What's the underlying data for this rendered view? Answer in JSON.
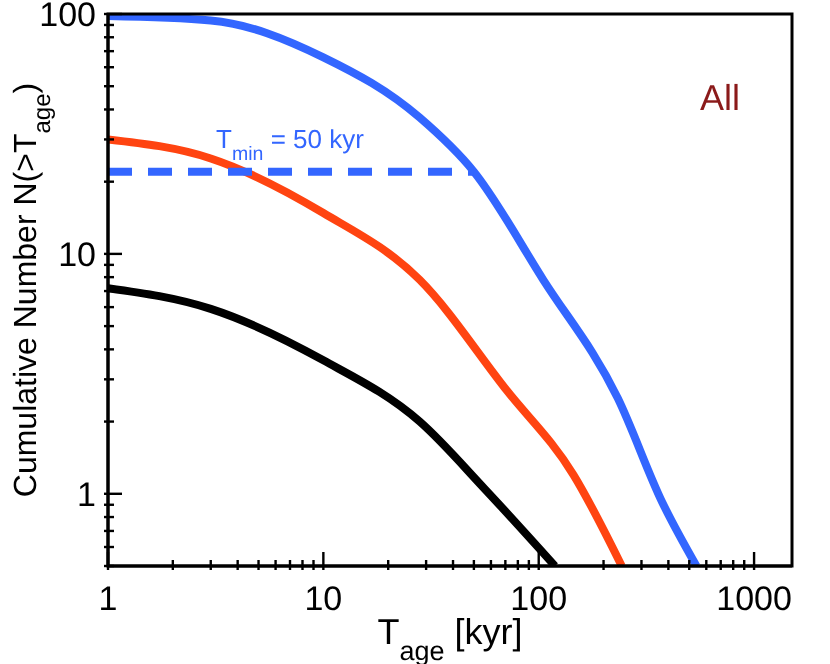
{
  "chart_data": {
    "type": "line",
    "xlabel": "T$_{age}$ [kyr]",
    "ylabel": "Cumulative Number N(>T$_{age}$)",
    "log": "xy",
    "xlim": [
      1,
      1500
    ],
    "ylim": [
      0.5,
      100
    ],
    "xticks": [
      1,
      {
        "value": 2,
        "label": null
      },
      {
        "value": 3,
        "label": null
      },
      {
        "value": 4,
        "label": null
      },
      {
        "value": 5,
        "label": null
      },
      {
        "value": 6,
        "label": null
      },
      {
        "value": 7,
        "label": null
      },
      {
        "value": 8,
        "label": null
      },
      {
        "value": 9,
        "label": null
      },
      10,
      {
        "value": 20,
        "label": null
      },
      {
        "value": 30,
        "label": null
      },
      {
        "value": 40,
        "label": null
      },
      {
        "value": 50,
        "label": null
      },
      {
        "value": 60,
        "label": null
      },
      {
        "value": 70,
        "label": null
      },
      {
        "value": 80,
        "label": null
      },
      {
        "value": 90,
        "label": null
      },
      100,
      {
        "value": 200,
        "label": null
      },
      {
        "value": 300,
        "label": null
      },
      {
        "value": 400,
        "label": null
      },
      {
        "value": 500,
        "label": null
      },
      {
        "value": 600,
        "label": null
      },
      {
        "value": 700,
        "label": null
      },
      {
        "value": 800,
        "label": null
      },
      {
        "value": 900,
        "label": null
      },
      1000
    ],
    "yticks": [
      {
        "value": 0.5,
        "label": null
      },
      {
        "value": 0.6,
        "label": null
      },
      {
        "value": 0.7,
        "label": null
      },
      {
        "value": 0.8,
        "label": null
      },
      {
        "value": 0.9,
        "label": null
      },
      1,
      {
        "value": 2,
        "label": null
      },
      {
        "value": 3,
        "label": null
      },
      {
        "value": 4,
        "label": null
      },
      {
        "value": 5,
        "label": null
      },
      {
        "value": 6,
        "label": null
      },
      {
        "value": 7,
        "label": null
      },
      {
        "value": 8,
        "label": null
      },
      {
        "value": 9,
        "label": null
      },
      10,
      {
        "value": 20,
        "label": null
      },
      {
        "value": 30,
        "label": null
      },
      {
        "value": 40,
        "label": null
      },
      {
        "value": 50,
        "label": null
      },
      {
        "value": 60,
        "label": null
      },
      {
        "value": 70,
        "label": null
      },
      {
        "value": 80,
        "label": null
      },
      {
        "value": 90,
        "label": null
      },
      100
    ],
    "series": [
      {
        "color": "#3366ff",
        "x": [
          1,
          3,
          10,
          28,
          50,
          105,
          233,
          375,
          540
        ],
        "values": [
          98,
          94,
          66,
          37,
          22,
          7.8,
          2.5,
          0.92,
          0.5
        ]
      },
      {
        "color": "#ff4411",
        "x": [
          1,
          3,
          10,
          28,
          71,
          145,
          243
        ],
        "values": [
          30,
          25,
          14.8,
          7.8,
          2.7,
          1.2,
          0.5
        ]
      },
      {
        "color": "#000000",
        "x": [
          1,
          3,
          10,
          28,
          56,
          119
        ],
        "values": [
          7.2,
          5.9,
          3.6,
          2,
          1.05,
          0.5
        ]
      },
      {
        "color": "#3366ff",
        "line_style": "dashed",
        "x": [
          1,
          50
        ],
        "values": [
          22,
          22
        ]
      }
    ],
    "annotations": [
      {
        "text": "T$_{min}$ = 50 kyr",
        "x": 7,
        "y": 22
      },
      "All"
    ]
  }
}
